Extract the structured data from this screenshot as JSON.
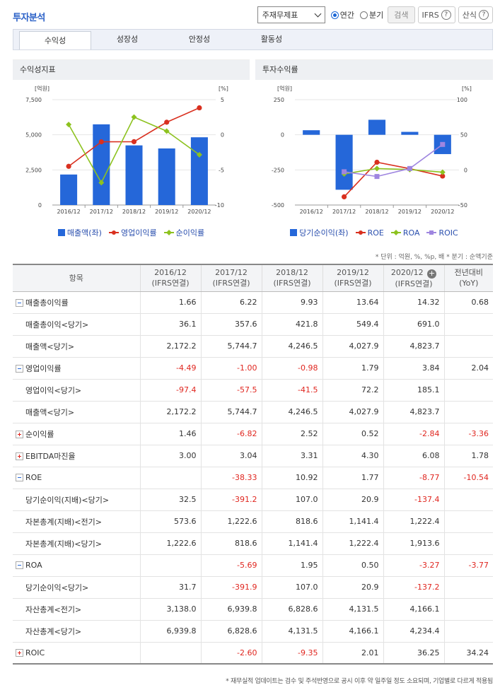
{
  "header": {
    "title": "투자분석",
    "select_value": "주재무제표",
    "radio_annual": "연간",
    "radio_quarter": "분기",
    "search_label": "검색",
    "ifrs_label": "IFRS",
    "formula_label": "산식",
    "help_glyph": "?"
  },
  "tabs": [
    "수익성",
    "성장성",
    "안정성",
    "활동성"
  ],
  "panels": {
    "left_title": "수익성지표",
    "right_title": "투자수익률",
    "left_legend": [
      "매출액(좌)",
      "영업이익률",
      "순이익률"
    ],
    "right_legend": [
      "당기순이익(좌)",
      "ROE",
      "ROA",
      "ROIC"
    ]
  },
  "colors": {
    "bar": "#2567d9",
    "red": "#d9301f",
    "green": "#8dc21f",
    "purple": "#9f86e0"
  },
  "chart_data": [
    {
      "type": "bar",
      "title": "수익성지표",
      "categories": [
        "2016/12",
        "2017/12",
        "2018/12",
        "2019/12",
        "2020/12"
      ],
      "left_unit": "[억원]",
      "right_unit": "[%]",
      "ylim_left": [
        0,
        7500
      ],
      "ylim_right": [
        -10,
        5
      ],
      "yticks_left": [
        "7,500",
        "5,000",
        "2,500",
        "0"
      ],
      "yticks_right": [
        "5",
        "0",
        "-5",
        "-10"
      ],
      "series": [
        {
          "name": "매출액(좌)",
          "type": "bar",
          "axis": "left",
          "values": [
            2172.2,
            5744.7,
            4246.5,
            4027.9,
            4823.7
          ]
        },
        {
          "name": "영업이익률",
          "type": "line",
          "axis": "right",
          "values": [
            -4.49,
            -1.0,
            -0.98,
            1.79,
            3.84
          ]
        },
        {
          "name": "순이익률",
          "type": "line",
          "axis": "right",
          "values": [
            1.46,
            -6.82,
            2.52,
            0.52,
            -2.84
          ]
        }
      ]
    },
    {
      "type": "bar",
      "title": "투자수익률",
      "categories": [
        "2016/12",
        "2017/12",
        "2018/12",
        "2019/12",
        "2020/12"
      ],
      "left_unit": "[억원]",
      "right_unit": "[%]",
      "ylim_left": [
        -500,
        250
      ],
      "ylim_right": [
        -50,
        100
      ],
      "yticks_left": [
        "250",
        "0",
        "-250",
        "-500"
      ],
      "yticks_right": [
        "100",
        "50",
        "0",
        "-50"
      ],
      "series": [
        {
          "name": "당기순이익(좌)",
          "type": "bar",
          "axis": "left",
          "values": [
            32.5,
            -391.2,
            107.0,
            20.9,
            -137.4
          ]
        },
        {
          "name": "ROE",
          "type": "line",
          "axis": "right",
          "values": [
            null,
            -38.33,
            10.92,
            1.77,
            -8.77
          ]
        },
        {
          "name": "ROA",
          "type": "line",
          "axis": "right",
          "values": [
            null,
            -5.69,
            1.95,
            0.5,
            -3.27
          ]
        },
        {
          "name": "ROIC",
          "type": "line",
          "axis": "right",
          "values": [
            null,
            -2.6,
            -9.35,
            2.01,
            36.25
          ]
        }
      ]
    }
  ],
  "unit_note": "* 단위 : 억원, %, %p, 배   * 분기 : 순액기준",
  "table": {
    "columns": [
      {
        "l1": "항목",
        "l2": ""
      },
      {
        "l1": "2016/12",
        "l2": "(IFRS연결)"
      },
      {
        "l1": "2017/12",
        "l2": "(IFRS연결)"
      },
      {
        "l1": "2018/12",
        "l2": "(IFRS연결)"
      },
      {
        "l1": "2019/12",
        "l2": "(IFRS연결)"
      },
      {
        "l1": "2020/12",
        "l2": "(IFRS연결)"
      },
      {
        "l1": "전년대비",
        "l2": "(YoY)"
      }
    ],
    "rows": [
      {
        "label": "매출총이익률",
        "level": 0,
        "toggle": "minus",
        "values": [
          "1.66",
          "6.22",
          "9.93",
          "13.64",
          "14.32",
          "0.68"
        ]
      },
      {
        "label": "매출총이익<당기>",
        "level": 1,
        "values": [
          "36.1",
          "357.6",
          "421.8",
          "549.4",
          "691.0",
          ""
        ]
      },
      {
        "label": "매출액<당기>",
        "level": 1,
        "values": [
          "2,172.2",
          "5,744.7",
          "4,246.5",
          "4,027.9",
          "4,823.7",
          ""
        ]
      },
      {
        "label": "영업이익률",
        "level": 0,
        "toggle": "minus",
        "values": [
          "-4.49",
          "-1.00",
          "-0.98",
          "1.79",
          "3.84",
          "2.04"
        ]
      },
      {
        "label": "영업이익<당기>",
        "level": 1,
        "values": [
          "-97.4",
          "-57.5",
          "-41.5",
          "72.2",
          "185.1",
          ""
        ]
      },
      {
        "label": "매출액<당기>",
        "level": 1,
        "values": [
          "2,172.2",
          "5,744.7",
          "4,246.5",
          "4,027.9",
          "4,823.7",
          ""
        ]
      },
      {
        "label": "순이익률",
        "level": 0,
        "toggle": "plus",
        "values": [
          "1.46",
          "-6.82",
          "2.52",
          "0.52",
          "-2.84",
          "-3.36"
        ]
      },
      {
        "label": "EBITDA마진율",
        "level": 0,
        "toggle": "plus",
        "values": [
          "3.00",
          "3.04",
          "3.31",
          "4.30",
          "6.08",
          "1.78"
        ]
      },
      {
        "label": "ROE",
        "level": 0,
        "toggle": "minus",
        "values": [
          "",
          "-38.33",
          "10.92",
          "1.77",
          "-8.77",
          "-10.54"
        ]
      },
      {
        "label": "당기순이익(지배)<당기>",
        "level": 1,
        "values": [
          "32.5",
          "-391.2",
          "107.0",
          "20.9",
          "-137.4",
          ""
        ]
      },
      {
        "label": "자본총계(지배)<전기>",
        "level": 1,
        "values": [
          "573.6",
          "1,222.6",
          "818.6",
          "1,141.4",
          "1,222.4",
          ""
        ]
      },
      {
        "label": "자본총계(지배)<당기>",
        "level": 1,
        "values": [
          "1,222.6",
          "818.6",
          "1,141.4",
          "1,222.4",
          "1,913.6",
          ""
        ]
      },
      {
        "label": "ROA",
        "level": 0,
        "toggle": "minus",
        "values": [
          "",
          "-5.69",
          "1.95",
          "0.50",
          "-3.27",
          "-3.77"
        ]
      },
      {
        "label": "당기순이익<당기>",
        "level": 1,
        "values": [
          "31.7",
          "-391.9",
          "107.0",
          "20.9",
          "-137.2",
          ""
        ]
      },
      {
        "label": "자산총계<전기>",
        "level": 1,
        "values": [
          "3,138.0",
          "6,939.8",
          "6,828.6",
          "4,131.5",
          "4,166.1",
          ""
        ]
      },
      {
        "label": "자산총계<당기>",
        "level": 1,
        "values": [
          "6,939.8",
          "6,828.6",
          "4,131.5",
          "4,166.1",
          "4,234.4",
          ""
        ]
      },
      {
        "label": "ROIC",
        "level": 0,
        "toggle": "plus",
        "values": [
          "",
          "-2.60",
          "-9.35",
          "2.01",
          "36.25",
          "34.24"
        ]
      }
    ]
  },
  "footer_note": "* 재무실적 업데이트는 검수 및 주석반영으로 공시 이후 약 일주일 정도 소요되며, 기업별로 다르게 적용됨"
}
